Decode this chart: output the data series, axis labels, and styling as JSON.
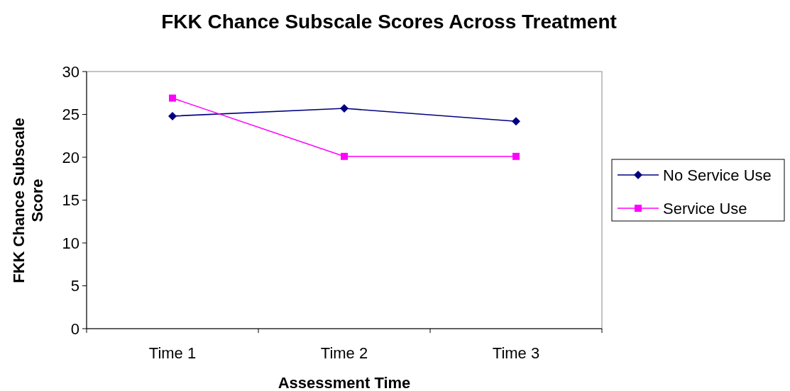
{
  "chart_data": {
    "type": "line",
    "title": "FKK Chance Subscale Scores Across Treatment",
    "xlabel": "Assessment Time",
    "ylabel": "FKK Chance Subscale Score",
    "categories": [
      "Time 1",
      "Time 2",
      "Time 3"
    ],
    "series": [
      {
        "name": "No Service Use",
        "color": "#000080",
        "marker": "diamond",
        "values": [
          24.8,
          25.7,
          24.2
        ]
      },
      {
        "name": "Service Use",
        "color": "#ff00ff",
        "marker": "square",
        "values": [
          26.9,
          20.1,
          20.1
        ]
      }
    ],
    "ylim": [
      0,
      30
    ],
    "yticks": [
      0,
      5,
      10,
      15,
      20,
      25,
      30
    ],
    "legend": "right",
    "grid": false
  }
}
